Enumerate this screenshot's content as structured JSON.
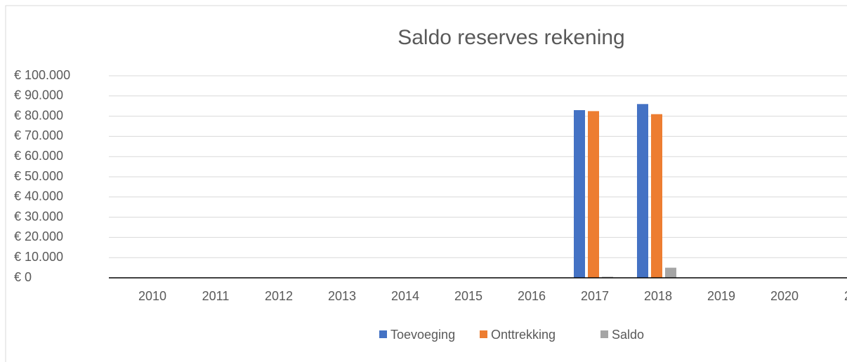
{
  "chart_data": {
    "type": "bar",
    "title": "Saldo reserves rekening",
    "categories": [
      "2010",
      "2011",
      "2012",
      "2013",
      "2014",
      "2015",
      "2016",
      "2017",
      "2018",
      "2019",
      "2020",
      "2"
    ],
    "series": [
      {
        "name": "Toevoeging",
        "color": "#4472c4",
        "values": [
          0,
          0,
          0,
          0,
          0,
          0,
          0,
          83000,
          86000,
          0,
          0,
          0
        ]
      },
      {
        "name": "Onttrekking",
        "color": "#ed7d31",
        "values": [
          0,
          0,
          0,
          0,
          0,
          0,
          0,
          82500,
          81000,
          0,
          0,
          0
        ]
      },
      {
        "name": "Saldo",
        "color": "#a5a5a5",
        "values": [
          0,
          0,
          0,
          0,
          0,
          0,
          0,
          500,
          5000,
          0,
          0,
          0
        ]
      }
    ],
    "ylim": [
      0,
      100000
    ],
    "yticks": [
      {
        "value": 0,
        "label": "€ 0"
      },
      {
        "value": 10000,
        "label": "€ 10.000"
      },
      {
        "value": 20000,
        "label": "€ 20.000"
      },
      {
        "value": 30000,
        "label": "€ 30.000"
      },
      {
        "value": 40000,
        "label": "€ 40.000"
      },
      {
        "value": 50000,
        "label": "€ 50.000"
      },
      {
        "value": 60000,
        "label": "€ 60.000"
      },
      {
        "value": 70000,
        "label": "€ 70.000"
      },
      {
        "value": 80000,
        "label": "€ 80.000"
      },
      {
        "value": 90000,
        "label": "€ 90.000"
      },
      {
        "value": 100000,
        "label": "€ 100.000"
      }
    ],
    "grid": true,
    "legend": "bottom"
  }
}
